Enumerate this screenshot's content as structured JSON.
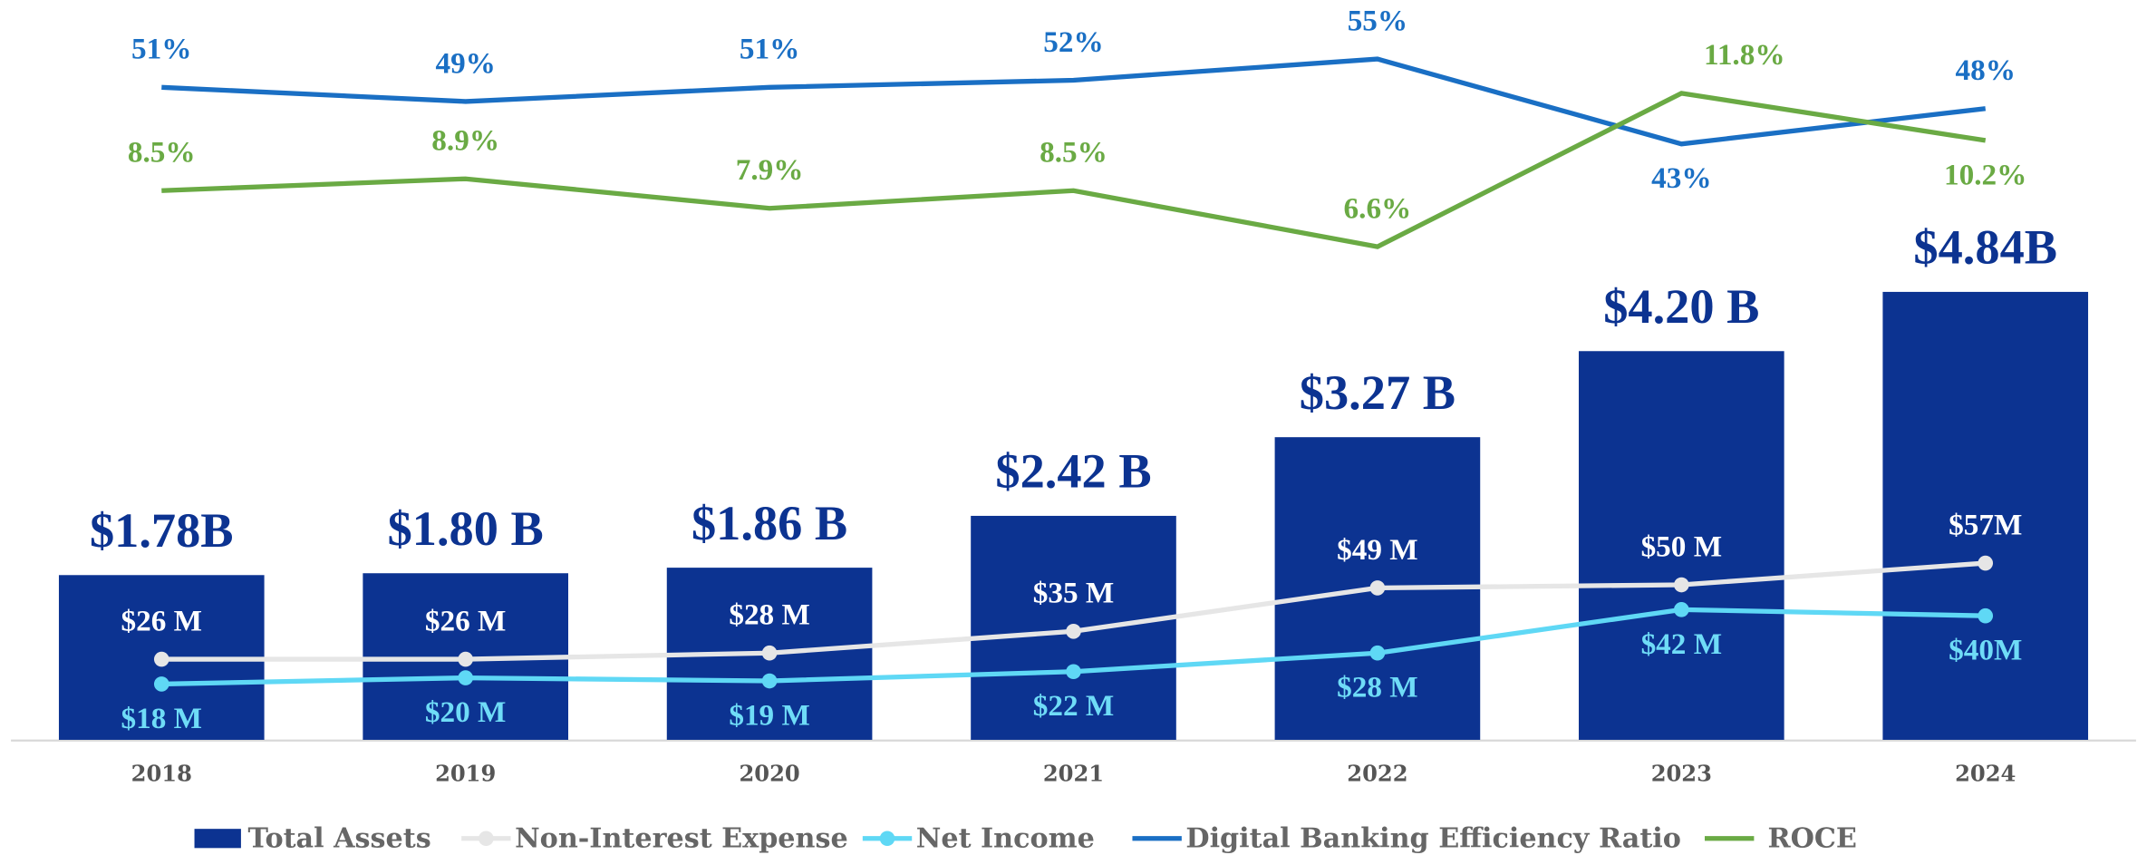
{
  "chart_data": {
    "type": "bar",
    "categories": [
      "2018",
      "2019",
      "2020",
      "2021",
      "2022",
      "2023",
      "2024"
    ],
    "series": [
      {
        "name": "Total Assets",
        "type": "bar",
        "color": "#0c3391",
        "values": [
          1.78,
          1.8,
          1.86,
          2.42,
          3.27,
          4.2,
          4.84
        ],
        "value_labels": [
          "$1.78B",
          "$1.80 B",
          "$1.86 B",
          "$2.42 B",
          "$3.27 B",
          "$4.20 B",
          "$4.84B"
        ]
      },
      {
        "name": "Non-Interest Expense",
        "type": "line",
        "color": "#e6e6e6",
        "label_color": "#ffffff",
        "values": [
          26,
          26,
          28,
          35,
          49,
          50,
          57
        ],
        "value_labels": [
          "$26 M",
          "$26 M",
          "$28 M",
          "$35 M",
          "$49 M",
          "$50 M",
          "$57M"
        ]
      },
      {
        "name": "Net Income",
        "type": "line",
        "color": "#5fd8f5",
        "label_color": "#6fdcf7",
        "values": [
          18,
          20,
          19,
          22,
          28,
          42,
          40
        ],
        "value_labels": [
          "$18 M",
          "$20 M",
          "$19 M",
          "$22 M",
          "$28 M",
          "$42 M",
          "$40M"
        ]
      },
      {
        "name": "Digital Banking Efficiency Ratio",
        "type": "line",
        "color": "#1a6fc4",
        "label_color": "#1a6fc4",
        "values": [
          51,
          49,
          51,
          52,
          55,
          43,
          48
        ],
        "value_labels": [
          "51%",
          "49%",
          "51%",
          "52%",
          "55%",
          "43%",
          "48%"
        ]
      },
      {
        "name": "ROCE",
        "type": "line",
        "color": "#6aaa44",
        "label_color": "#6aaa44",
        "values": [
          8.5,
          8.9,
          7.9,
          8.5,
          6.6,
          11.8,
          10.2
        ],
        "value_labels": [
          "8.5%",
          "8.9%",
          "7.9%",
          "8.5%",
          "6.6%",
          "11.8%",
          "10.2%"
        ]
      }
    ]
  }
}
